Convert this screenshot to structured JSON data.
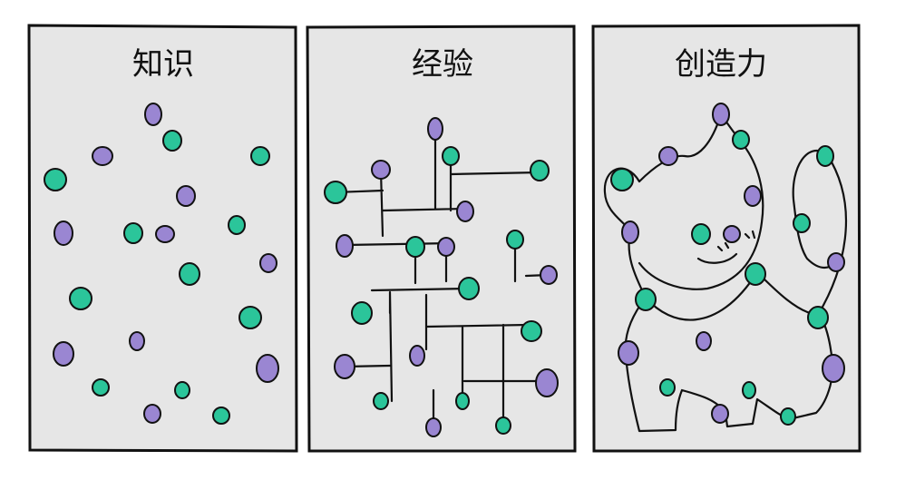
{
  "panels": [
    {
      "title": "知识"
    },
    {
      "title": "经验"
    },
    {
      "title": "创造力"
    }
  ],
  "colors": {
    "panel_bg": "#e6e6e6",
    "outline": "#111111",
    "dot_purple": "#9a86d2",
    "dot_green": "#2bc59a"
  }
}
